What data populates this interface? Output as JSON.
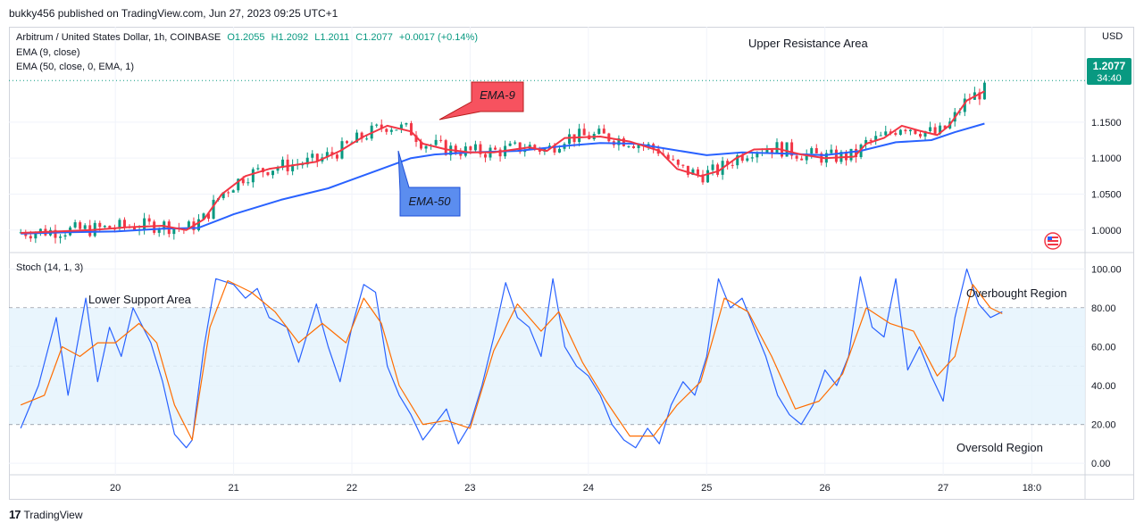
{
  "publisher_line": "bukky456 published on TradingView.com, Jun 27, 2023 09:25 UTC+1",
  "overlay": {
    "symbol": "Arbitrum / United States Dollar, 1h, COINBASE",
    "open": "O1.2055",
    "high": "H1.2092",
    "low": "L1.2011",
    "close": "C1.2077",
    "change": "+0.0017 (+0.14%)",
    "ema9_label": "EMA (9, close)",
    "ema50_label": "EMA (50, close, 0, EMA, 1)"
  },
  "footer_brand": "TradingView",
  "colors": {
    "up": "#089981",
    "down": "#f23645",
    "ema9": "#f23645",
    "ema50": "#2962ff",
    "stoch_k": "#2962ff",
    "stoch_d": "#ff6d00",
    "band": "#e3f2fd",
    "price_tag": "#089981"
  },
  "chart_data": [
    {
      "type": "candlestick",
      "currency_label": "USD",
      "price_tag": "1.2077",
      "countdown": "34:40",
      "y_ticks": [
        "1.0000",
        "1.0500",
        "1.1000",
        "1.1500"
      ],
      "ylim": [
        0.97,
        1.28
      ],
      "x_ticks": [
        "20",
        "21",
        "22",
        "23",
        "24",
        "25",
        "26",
        "27",
        "18:0"
      ],
      "annotations": [
        "Upper Resistance Area",
        "EMA-9",
        "EMA-50"
      ],
      "series": [
        {
          "name": "EMA (9, close)",
          "points": [
            [
              19.2,
              0.996
            ],
            [
              19.5,
              0.998
            ],
            [
              19.8,
              1.0
            ],
            [
              20.1,
              1.004
            ],
            [
              20.4,
              1.006
            ],
            [
              20.6,
              1.0
            ],
            [
              20.75,
              1.015
            ],
            [
              20.9,
              1.05
            ],
            [
              21.1,
              1.075
            ],
            [
              21.3,
              1.085
            ],
            [
              21.5,
              1.09
            ],
            [
              21.7,
              1.095
            ],
            [
              21.9,
              1.11
            ],
            [
              22.0,
              1.12
            ],
            [
              22.1,
              1.13
            ],
            [
              22.3,
              1.145
            ],
            [
              22.5,
              1.137
            ],
            [
              22.6,
              1.12
            ],
            [
              22.8,
              1.112
            ],
            [
              23.0,
              1.108
            ],
            [
              23.2,
              1.108
            ],
            [
              23.5,
              1.115
            ],
            [
              23.65,
              1.11
            ],
            [
              23.8,
              1.128
            ],
            [
              24.1,
              1.13
            ],
            [
              24.35,
              1.123
            ],
            [
              24.6,
              1.11
            ],
            [
              24.75,
              1.085
            ],
            [
              24.95,
              1.075
            ],
            [
              25.1,
              1.082
            ],
            [
              25.25,
              1.1
            ],
            [
              25.4,
              1.112
            ],
            [
              25.6,
              1.113
            ],
            [
              25.8,
              1.105
            ],
            [
              26.0,
              1.1
            ],
            [
              26.25,
              1.102
            ],
            [
              26.35,
              1.12
            ],
            [
              26.5,
              1.128
            ],
            [
              26.65,
              1.145
            ],
            [
              26.8,
              1.138
            ],
            [
              26.95,
              1.132
            ],
            [
              27.05,
              1.145
            ],
            [
              27.2,
              1.18
            ],
            [
              27.35,
              1.193
            ]
          ]
        },
        {
          "name": "EMA (50, close, 0, EMA, 1)",
          "points": [
            [
              19.2,
              0.995
            ],
            [
              19.6,
              0.997
            ],
            [
              20.0,
              0.998
            ],
            [
              20.4,
              1.002
            ],
            [
              20.7,
              1.003
            ],
            [
              21.0,
              1.022
            ],
            [
              21.4,
              1.042
            ],
            [
              21.8,
              1.058
            ],
            [
              22.2,
              1.082
            ],
            [
              22.5,
              1.1
            ],
            [
              22.7,
              1.105
            ],
            [
              23.0,
              1.108
            ],
            [
              23.4,
              1.11
            ],
            [
              23.8,
              1.117
            ],
            [
              24.1,
              1.121
            ],
            [
              24.4,
              1.12
            ],
            [
              24.7,
              1.112
            ],
            [
              25.0,
              1.104
            ],
            [
              25.3,
              1.108
            ],
            [
              25.7,
              1.106
            ],
            [
              26.0,
              1.104
            ],
            [
              26.3,
              1.11
            ],
            [
              26.6,
              1.122
            ],
            [
              26.9,
              1.125
            ],
            [
              27.1,
              1.136
            ],
            [
              27.35,
              1.148
            ]
          ]
        }
      ]
    },
    {
      "type": "line",
      "title": "Stoch (14, 1, 3)",
      "y_ticks": [
        "0.00",
        "20.00",
        "40.00",
        "60.00",
        "80.00",
        "100.00"
      ],
      "ylim": [
        -5,
        108
      ],
      "bands": [
        20,
        80
      ],
      "annotations": [
        "Lower Support Area",
        "Overbought Region",
        "Oversold Region"
      ],
      "series": [
        {
          "name": "Stoch %K",
          "points": [
            [
              19.2,
              18
            ],
            [
              19.35,
              40
            ],
            [
              19.5,
              75
            ],
            [
              19.6,
              35
            ],
            [
              19.75,
              85
            ],
            [
              19.85,
              42
            ],
            [
              19.95,
              70
            ],
            [
              20.05,
              55
            ],
            [
              20.15,
              80
            ],
            [
              20.3,
              62
            ],
            [
              20.4,
              42
            ],
            [
              20.5,
              15
            ],
            [
              20.6,
              8
            ],
            [
              20.65,
              12
            ],
            [
              20.75,
              60
            ],
            [
              20.85,
              95
            ],
            [
              21.0,
              92
            ],
            [
              21.1,
              85
            ],
            [
              21.2,
              90
            ],
            [
              21.3,
              75
            ],
            [
              21.45,
              70
            ],
            [
              21.55,
              52
            ],
            [
              21.7,
              82
            ],
            [
              21.8,
              60
            ],
            [
              21.9,
              42
            ],
            [
              22.0,
              70
            ],
            [
              22.1,
              92
            ],
            [
              22.2,
              88
            ],
            [
              22.3,
              50
            ],
            [
              22.4,
              35
            ],
            [
              22.5,
              25
            ],
            [
              22.6,
              12
            ],
            [
              22.7,
              20
            ],
            [
              22.8,
              28
            ],
            [
              22.9,
              10
            ],
            [
              23.0,
              20
            ],
            [
              23.1,
              40
            ],
            [
              23.2,
              65
            ],
            [
              23.3,
              93
            ],
            [
              23.4,
              75
            ],
            [
              23.5,
              70
            ],
            [
              23.6,
              55
            ],
            [
              23.7,
              95
            ],
            [
              23.8,
              60
            ],
            [
              23.9,
              50
            ],
            [
              24.0,
              45
            ],
            [
              24.1,
              35
            ],
            [
              24.2,
              20
            ],
            [
              24.3,
              12
            ],
            [
              24.4,
              8
            ],
            [
              24.5,
              18
            ],
            [
              24.6,
              10
            ],
            [
              24.7,
              30
            ],
            [
              24.8,
              42
            ],
            [
              24.9,
              35
            ],
            [
              25.0,
              55
            ],
            [
              25.1,
              95
            ],
            [
              25.2,
              80
            ],
            [
              25.3,
              85
            ],
            [
              25.4,
              70
            ],
            [
              25.5,
              55
            ],
            [
              25.6,
              35
            ],
            [
              25.7,
              25
            ],
            [
              25.8,
              20
            ],
            [
              25.9,
              30
            ],
            [
              26.0,
              48
            ],
            [
              26.1,
              40
            ],
            [
              26.2,
              55
            ],
            [
              26.3,
              96
            ],
            [
              26.4,
              70
            ],
            [
              26.5,
              65
            ],
            [
              26.6,
              95
            ],
            [
              26.7,
              48
            ],
            [
              26.8,
              60
            ],
            [
              26.9,
              45
            ],
            [
              27.0,
              32
            ],
            [
              27.1,
              75
            ],
            [
              27.2,
              100
            ],
            [
              27.3,
              82
            ],
            [
              27.4,
              75
            ],
            [
              27.5,
              78
            ]
          ]
        },
        {
          "name": "Stoch %D",
          "points": [
            [
              19.2,
              30
            ],
            [
              19.4,
              35
            ],
            [
              19.55,
              60
            ],
            [
              19.7,
              55
            ],
            [
              19.85,
              62
            ],
            [
              20.0,
              62
            ],
            [
              20.2,
              72
            ],
            [
              20.35,
              62
            ],
            [
              20.5,
              30
            ],
            [
              20.65,
              12
            ],
            [
              20.8,
              70
            ],
            [
              20.95,
              94
            ],
            [
              21.15,
              88
            ],
            [
              21.35,
              78
            ],
            [
              21.55,
              62
            ],
            [
              21.75,
              72
            ],
            [
              21.95,
              62
            ],
            [
              22.1,
              85
            ],
            [
              22.25,
              72
            ],
            [
              22.4,
              40
            ],
            [
              22.6,
              20
            ],
            [
              22.8,
              22
            ],
            [
              23.0,
              18
            ],
            [
              23.2,
              58
            ],
            [
              23.4,
              82
            ],
            [
              23.6,
              68
            ],
            [
              23.75,
              78
            ],
            [
              23.95,
              52
            ],
            [
              24.15,
              32
            ],
            [
              24.35,
              14
            ],
            [
              24.55,
              14
            ],
            [
              24.75,
              30
            ],
            [
              24.95,
              42
            ],
            [
              25.15,
              85
            ],
            [
              25.35,
              78
            ],
            [
              25.55,
              55
            ],
            [
              25.75,
              28
            ],
            [
              25.95,
              32
            ],
            [
              26.15,
              46
            ],
            [
              26.35,
              80
            ],
            [
              26.55,
              72
            ],
            [
              26.75,
              68
            ],
            [
              26.95,
              45
            ],
            [
              27.1,
              55
            ],
            [
              27.25,
              92
            ],
            [
              27.4,
              80
            ],
            [
              27.5,
              77
            ]
          ]
        }
      ]
    }
  ]
}
